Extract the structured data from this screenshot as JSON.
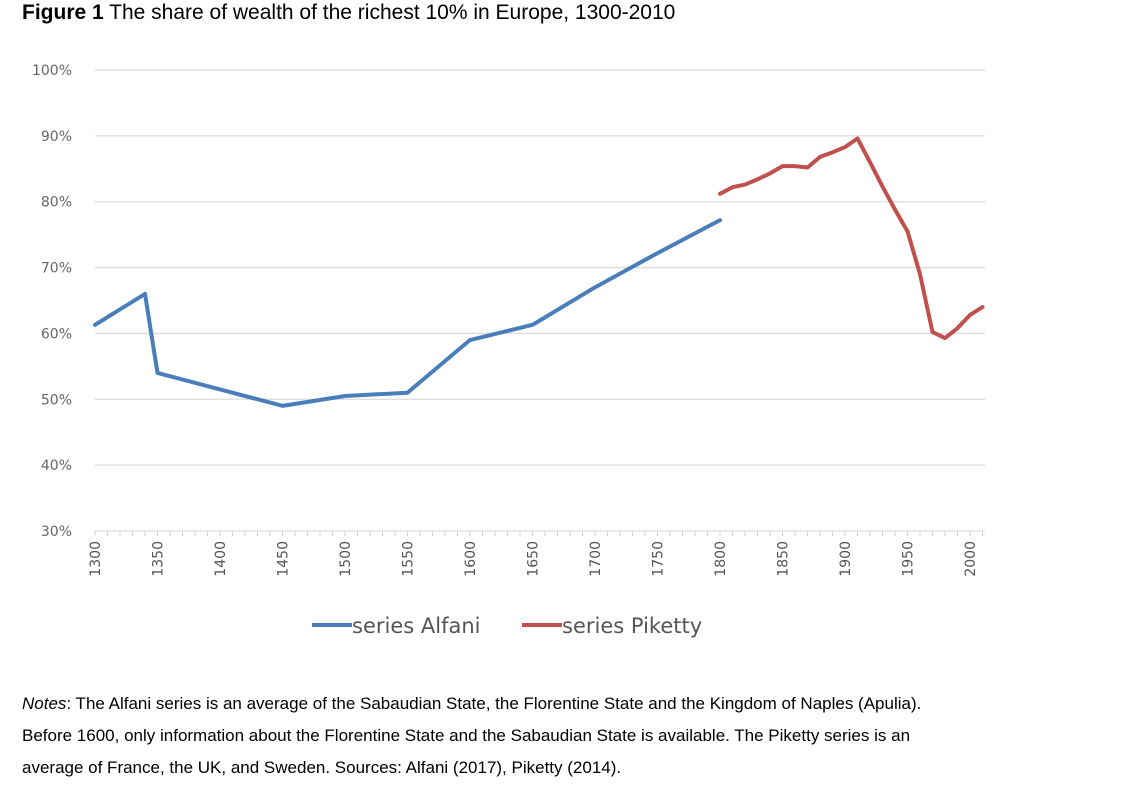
{
  "title": {
    "label": "Figure 1",
    "text": "The share of wealth of the richest 10% in Europe, 1300-2010"
  },
  "chart_data": {
    "type": "line",
    "title": "",
    "xlabel": "",
    "ylabel": "",
    "xlim": [
      1300,
      2010
    ],
    "ylim": [
      30,
      100
    ],
    "x_ticks": [
      "1300",
      "1350",
      "1400",
      "1450",
      "1500",
      "1550",
      "1600",
      "1650",
      "1700",
      "1750",
      "1800",
      "1850",
      "1900",
      "1950",
      "2000"
    ],
    "y_ticks": [
      "30%",
      "40%",
      "50%",
      "60%",
      "70%",
      "80%",
      "90%",
      "100%"
    ],
    "grid": true,
    "legend": "bottom",
    "series": [
      {
        "name": "series Alfani",
        "color": "#4a7ebb",
        "x": [
          1300,
          1340,
          1350,
          1400,
          1450,
          1500,
          1550,
          1600,
          1650,
          1700,
          1750,
          1800
        ],
        "y": [
          61.3,
          66.0,
          54.0,
          51.5,
          49.0,
          50.5,
          51.0,
          59.0,
          61.3,
          67.0,
          72.2,
          77.2
        ]
      },
      {
        "name": "series Piketty",
        "color": "#c0504d",
        "x": [
          1800,
          1810,
          1820,
          1830,
          1840,
          1850,
          1860,
          1870,
          1880,
          1890,
          1900,
          1910,
          1920,
          1930,
          1940,
          1950,
          1960,
          1970,
          1980,
          1990,
          2000,
          2010
        ],
        "y": [
          81.2,
          82.2,
          82.6,
          83.4,
          84.3,
          85.4,
          85.4,
          85.2,
          86.8,
          87.5,
          88.3,
          89.6,
          86.0,
          82.3,
          78.8,
          75.5,
          69.0,
          60.2,
          59.3,
          60.8,
          62.8,
          64.0
        ]
      }
    ]
  },
  "notes": {
    "label": "Notes",
    "lines": [
      ": The Alfani series is an average of the Sabaudian State, the Florentine State and the Kingdom of Naples (Apulia).",
      "Before 1600, only information about the Florentine State and the Sabaudian State is available. The Piketty series is an",
      "average of France, the UK, and Sweden. Sources: Alfani (2017), Piketty (2014)."
    ]
  }
}
